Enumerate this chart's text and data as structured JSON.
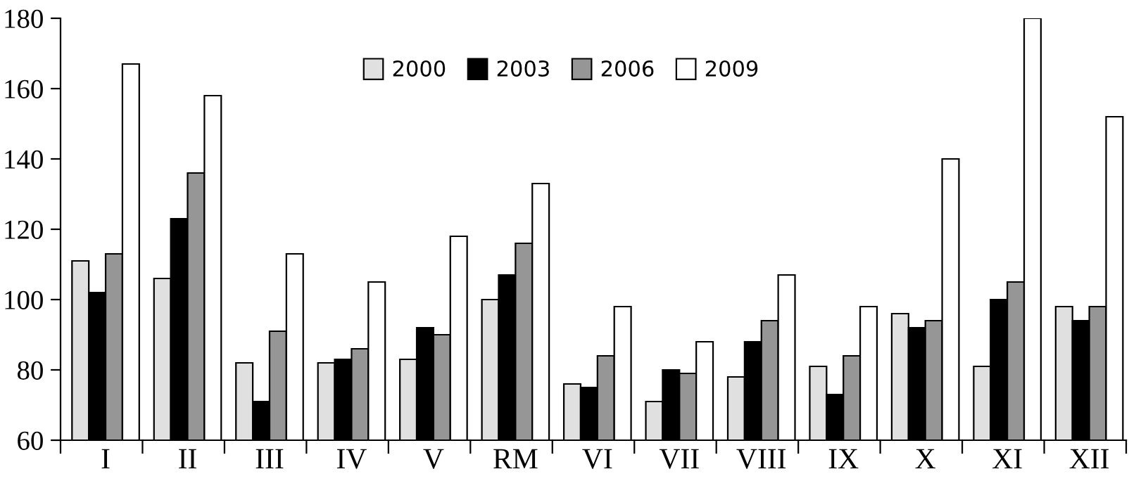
{
  "chart_data": {
    "type": "bar",
    "categories": [
      "I",
      "II",
      "III",
      "IV",
      "V",
      "RM",
      "VI",
      "VII",
      "VIII",
      "IX",
      "X",
      "XI",
      "XII"
    ],
    "series": [
      {
        "name": "2000",
        "color": "#e0e0e0",
        "values": [
          111,
          106,
          82,
          82,
          83,
          100,
          76,
          71,
          78,
          81,
          96,
          81,
          98
        ]
      },
      {
        "name": "2003",
        "color": "#000000",
        "values": [
          102,
          123,
          71,
          83,
          92,
          107,
          75,
          80,
          88,
          73,
          92,
          100,
          94
        ]
      },
      {
        "name": "2006",
        "color": "#969696",
        "values": [
          113,
          136,
          91,
          86,
          90,
          116,
          84,
          79,
          94,
          84,
          94,
          105,
          98
        ]
      },
      {
        "name": "2009",
        "color": "#ffffff",
        "values": [
          167,
          158,
          113,
          105,
          118,
          133,
          98,
          88,
          107,
          98,
          140,
          180,
          152
        ]
      }
    ],
    "ylim": [
      60,
      180
    ],
    "yticks": [
      60,
      80,
      100,
      120,
      140,
      160,
      180
    ],
    "legend": "top",
    "grid": false
  }
}
